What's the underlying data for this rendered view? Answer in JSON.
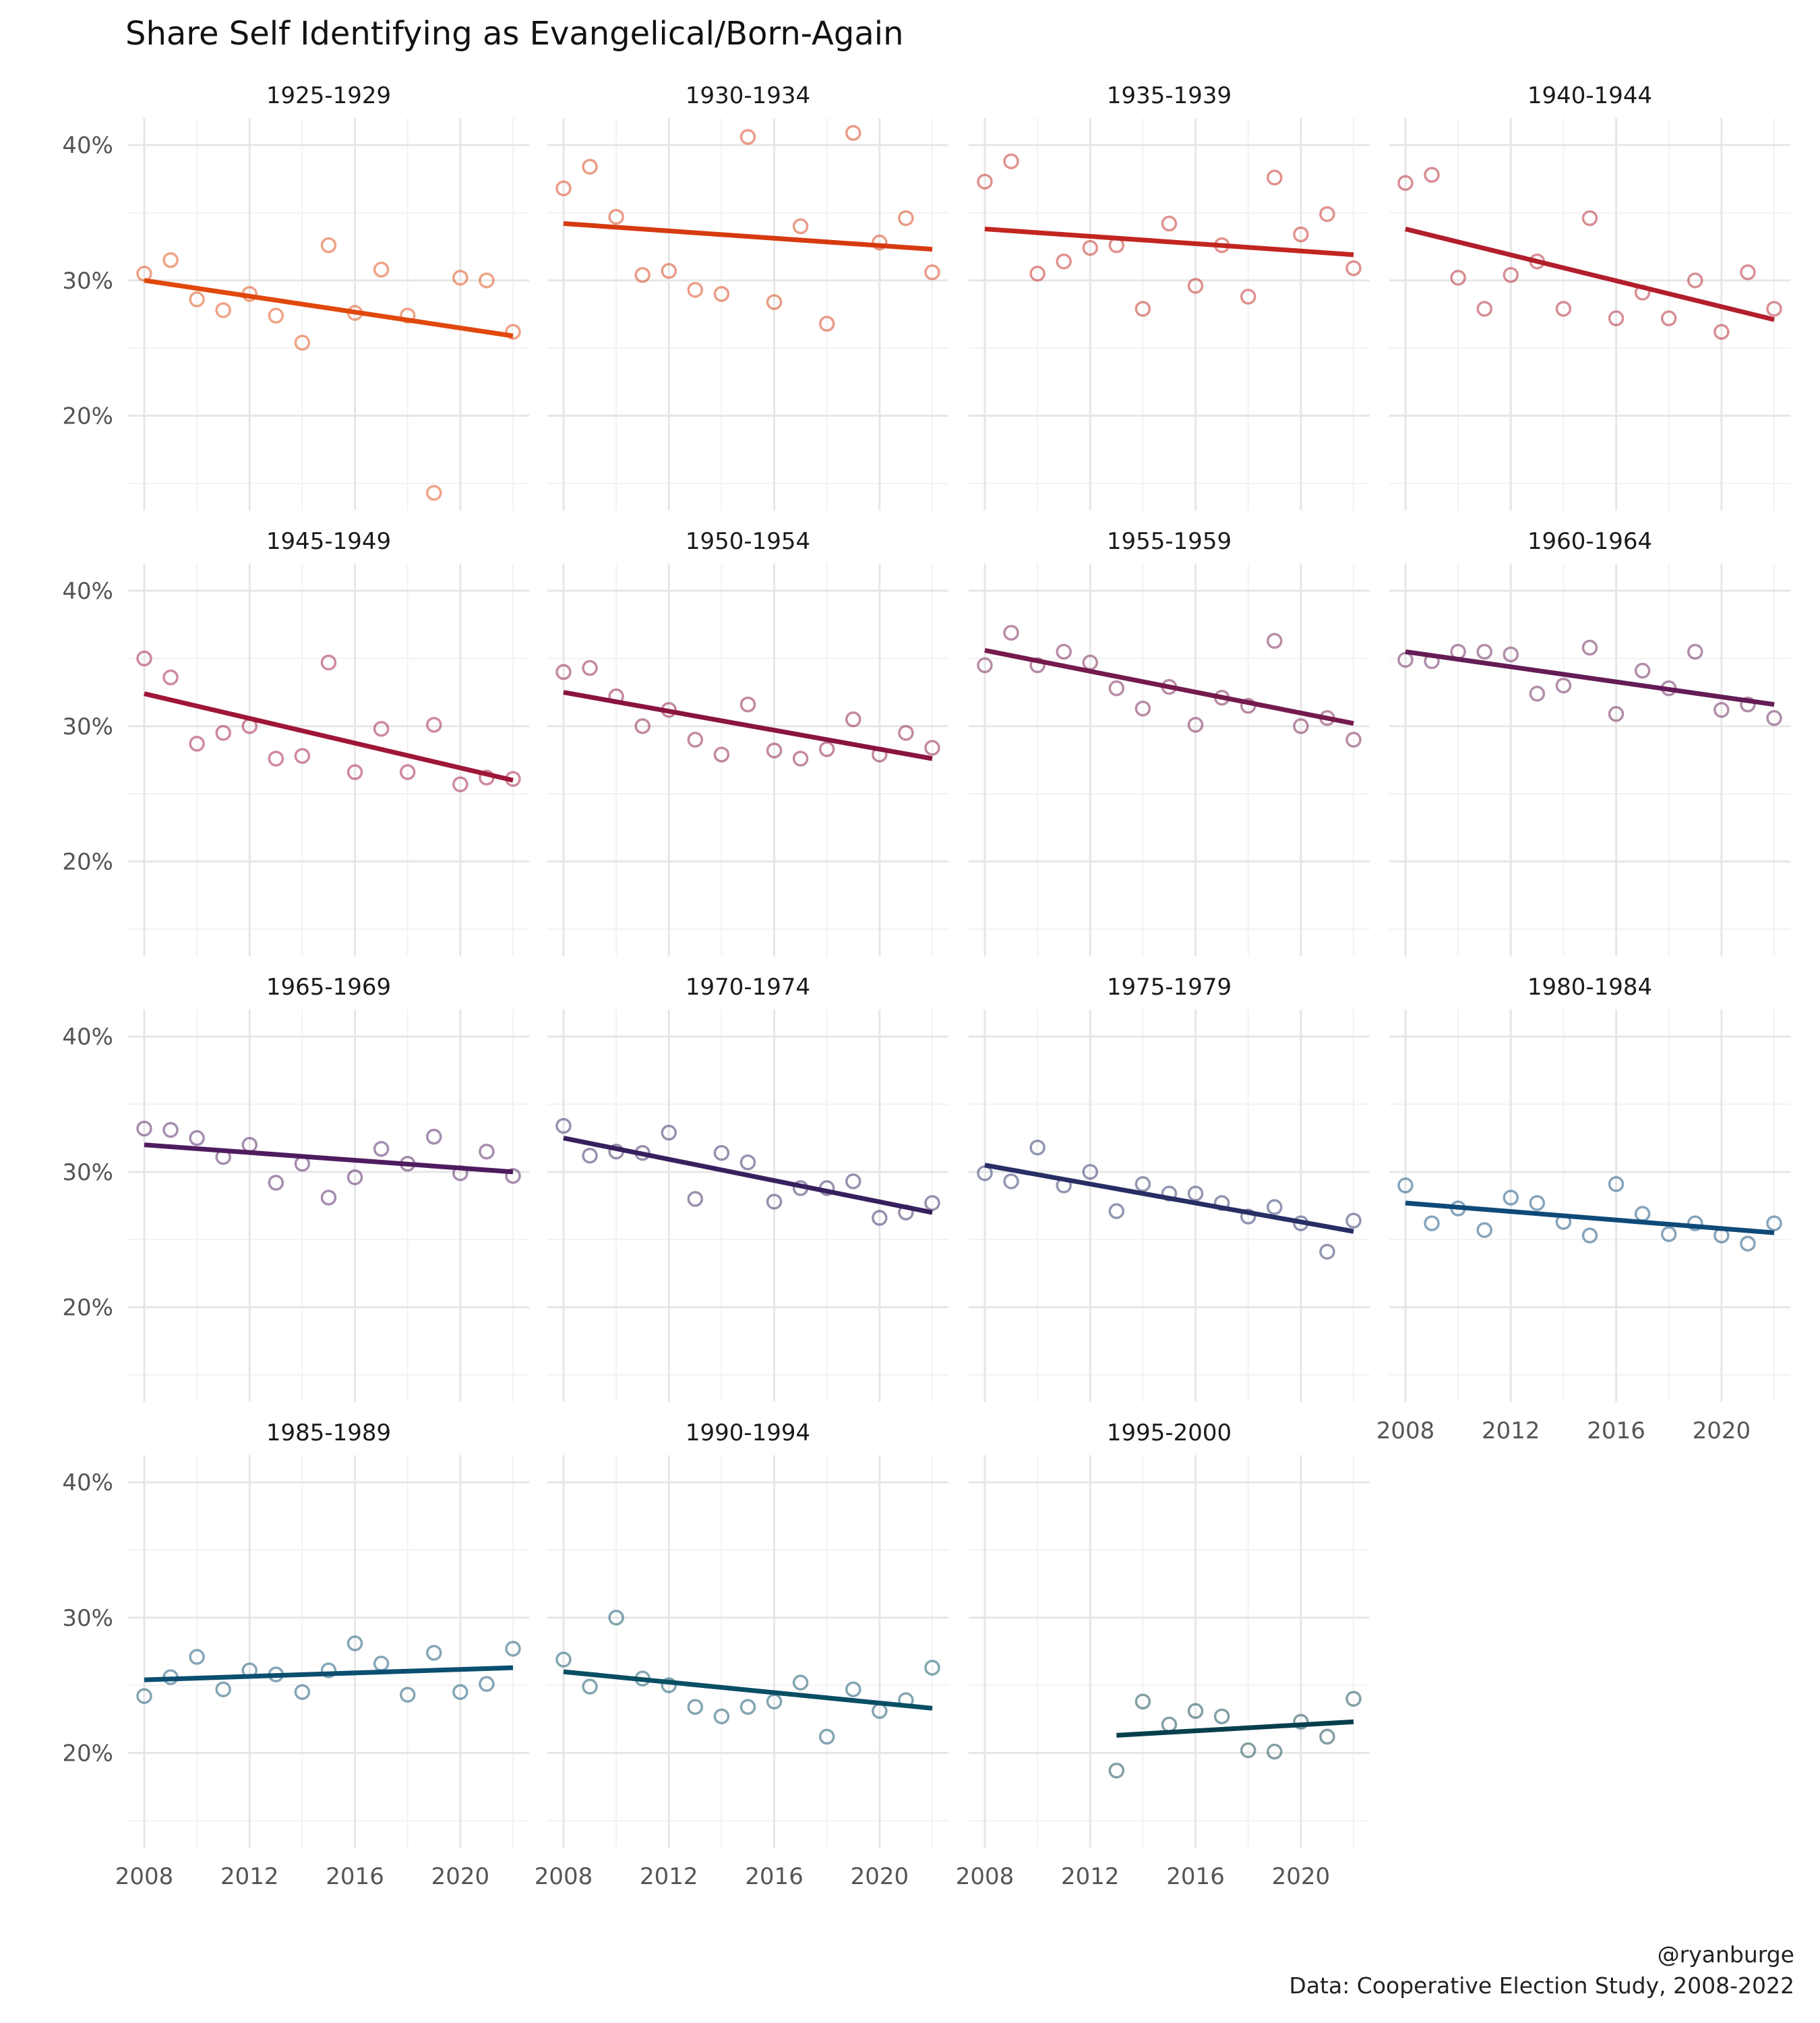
{
  "title": "Share Self Identifying as Evangelical/Born-Again",
  "caption_lines": [
    "@ryanburge",
    "Data: Cooperative Election Study, 2008-2022"
  ],
  "chart_data": {
    "type": "scatter",
    "facet_layout": "4 columns x 4 rows",
    "x_range": [
      2008,
      2022
    ],
    "y_range": [
      0.13,
      0.42
    ],
    "x_ticks": [
      2008,
      2012,
      2016,
      2020
    ],
    "x_tick_labels": [
      "2008",
      "2012",
      "2016",
      "2020"
    ],
    "y_ticks": [
      0.2,
      0.3,
      0.4
    ],
    "y_tick_labels": [
      "20%",
      "30%",
      "40%"
    ],
    "grid": true,
    "legend": "none",
    "panels": [
      {
        "label": "1925-1929",
        "color": "#E0480E",
        "x": [
          2008,
          2009,
          2010,
          2011,
          2012,
          2013,
          2014,
          2015,
          2016,
          2017,
          2018,
          2019,
          2020,
          2021,
          2022
        ],
        "y": [
          0.305,
          0.315,
          0.286,
          0.278,
          0.29,
          0.274,
          0.254,
          0.326,
          0.276,
          0.308,
          0.274,
          0.143,
          0.302,
          0.3,
          0.262
        ],
        "fit": [
          [
            2008,
            0.3
          ],
          [
            2022,
            0.259
          ]
        ]
      },
      {
        "label": "1930-1934",
        "color": "#D63A10",
        "x": [
          2008,
          2009,
          2010,
          2011,
          2012,
          2013,
          2014,
          2015,
          2016,
          2017,
          2018,
          2019,
          2020,
          2021,
          2022
        ],
        "y": [
          0.368,
          0.384,
          0.347,
          0.304,
          0.307,
          0.293,
          0.29,
          0.406,
          0.284,
          0.34,
          0.268,
          0.409,
          0.328,
          0.346,
          0.306
        ],
        "fit": [
          [
            2008,
            0.342
          ],
          [
            2022,
            0.323
          ]
        ]
      },
      {
        "label": "1935-1939",
        "color": "#C22520",
        "x": [
          2008,
          2009,
          2010,
          2011,
          2012,
          2013,
          2014,
          2015,
          2016,
          2017,
          2018,
          2019,
          2020,
          2021,
          2022
        ],
        "y": [
          0.373,
          0.388,
          0.305,
          0.314,
          0.324,
          0.326,
          0.279,
          0.342,
          0.296,
          0.326,
          0.288,
          0.376,
          0.334,
          0.349,
          0.309
        ],
        "fit": [
          [
            2008,
            0.338
          ],
          [
            2022,
            0.319
          ]
        ]
      },
      {
        "label": "1940-1944",
        "color": "#B21E2C",
        "x": [
          2008,
          2009,
          2010,
          2011,
          2012,
          2013,
          2014,
          2015,
          2016,
          2017,
          2018,
          2019,
          2020,
          2021,
          2022
        ],
        "y": [
          0.372,
          0.378,
          0.302,
          0.279,
          0.304,
          0.314,
          0.279,
          0.346,
          0.272,
          0.291,
          0.272,
          0.3,
          0.262,
          0.306,
          0.279
        ],
        "fit": [
          [
            2008,
            0.338
          ],
          [
            2022,
            0.271
          ]
        ]
      },
      {
        "label": "1945-1949",
        "color": "#9E1638",
        "x": [
          2008,
          2009,
          2010,
          2011,
          2012,
          2013,
          2014,
          2015,
          2016,
          2017,
          2018,
          2019,
          2020,
          2021,
          2022
        ],
        "y": [
          0.35,
          0.336,
          0.287,
          0.295,
          0.3,
          0.276,
          0.278,
          0.347,
          0.266,
          0.298,
          0.266,
          0.301,
          0.257,
          0.262,
          0.261
        ],
        "fit": [
          [
            2008,
            0.324
          ],
          [
            2022,
            0.26
          ]
        ]
      },
      {
        "label": "1950-1954",
        "color": "#8A1440",
        "x": [
          2008,
          2009,
          2010,
          2011,
          2012,
          2013,
          2014,
          2015,
          2016,
          2017,
          2018,
          2019,
          2020,
          2021,
          2022
        ],
        "y": [
          0.34,
          0.343,
          0.322,
          0.3,
          0.312,
          0.29,
          0.279,
          0.316,
          0.282,
          0.276,
          0.283,
          0.305,
          0.279,
          0.295,
          0.284
        ],
        "fit": [
          [
            2008,
            0.325
          ],
          [
            2022,
            0.276
          ]
        ]
      },
      {
        "label": "1955-1959",
        "color": "#741A4C",
        "x": [
          2008,
          2009,
          2010,
          2011,
          2012,
          2013,
          2014,
          2015,
          2016,
          2017,
          2018,
          2019,
          2020,
          2021,
          2022
        ],
        "y": [
          0.345,
          0.369,
          0.345,
          0.355,
          0.347,
          0.328,
          0.313,
          0.329,
          0.301,
          0.321,
          0.315,
          0.363,
          0.3,
          0.306,
          0.29
        ],
        "fit": [
          [
            2008,
            0.356
          ],
          [
            2022,
            0.302
          ]
        ]
      },
      {
        "label": "1960-1964",
        "color": "#641C56",
        "x": [
          2008,
          2009,
          2010,
          2011,
          2012,
          2013,
          2014,
          2015,
          2016,
          2017,
          2018,
          2019,
          2020,
          2021,
          2022
        ],
        "y": [
          0.349,
          0.348,
          0.355,
          0.355,
          0.353,
          0.324,
          0.33,
          0.358,
          0.309,
          0.341,
          0.328,
          0.355,
          0.312,
          0.316,
          0.306
        ],
        "fit": [
          [
            2008,
            0.355
          ],
          [
            2022,
            0.316
          ]
        ]
      },
      {
        "label": "1965-1969",
        "color": "#4E1C5E",
        "x": [
          2008,
          2009,
          2010,
          2011,
          2012,
          2013,
          2014,
          2015,
          2016,
          2017,
          2018,
          2019,
          2020,
          2021,
          2022
        ],
        "y": [
          0.332,
          0.331,
          0.325,
          0.311,
          0.32,
          0.292,
          0.306,
          0.281,
          0.296,
          0.317,
          0.306,
          0.326,
          0.299,
          0.315,
          0.297
        ],
        "fit": [
          [
            2008,
            0.32
          ],
          [
            2022,
            0.3
          ]
        ]
      },
      {
        "label": "1970-1974",
        "color": "#36205E",
        "x": [
          2008,
          2009,
          2010,
          2011,
          2012,
          2013,
          2014,
          2015,
          2016,
          2017,
          2018,
          2019,
          2020,
          2021,
          2022
        ],
        "y": [
          0.334,
          0.312,
          0.315,
          0.314,
          0.329,
          0.28,
          0.314,
          0.307,
          0.278,
          0.288,
          0.288,
          0.293,
          0.266,
          0.27,
          0.277
        ],
        "fit": [
          [
            2008,
            0.325
          ],
          [
            2022,
            0.27
          ]
        ]
      },
      {
        "label": "1975-1979",
        "color": "#262E64",
        "x": [
          2008,
          2009,
          2010,
          2011,
          2012,
          2013,
          2014,
          2015,
          2016,
          2017,
          2018,
          2019,
          2020,
          2021,
          2022
        ],
        "y": [
          0.299,
          0.293,
          0.318,
          0.29,
          0.3,
          0.271,
          0.291,
          0.284,
          0.284,
          0.277,
          0.267,
          0.274,
          0.262,
          0.241,
          0.264
        ],
        "fit": [
          [
            2008,
            0.305
          ],
          [
            2022,
            0.256
          ]
        ]
      },
      {
        "label": "1980-1984",
        "color": "#0E4A78",
        "x": [
          2008,
          2009,
          2010,
          2011,
          2012,
          2013,
          2014,
          2015,
          2016,
          2017,
          2018,
          2019,
          2020,
          2021,
          2022
        ],
        "y": [
          0.29,
          0.262,
          0.273,
          0.257,
          0.281,
          0.277,
          0.263,
          0.253,
          0.291,
          0.269,
          0.254,
          0.262,
          0.253,
          0.247,
          0.262
        ],
        "fit": [
          [
            2008,
            0.277
          ],
          [
            2022,
            0.255
          ]
        ]
      },
      {
        "label": "1985-1989",
        "color": "#0B4E70",
        "x": [
          2008,
          2009,
          2010,
          2011,
          2012,
          2013,
          2014,
          2015,
          2016,
          2017,
          2018,
          2019,
          2020,
          2021,
          2022
        ],
        "y": [
          0.242,
          0.256,
          0.271,
          0.247,
          0.261,
          0.258,
          0.245,
          0.261,
          0.281,
          0.266,
          0.243,
          0.274,
          0.245,
          0.251,
          0.277
        ],
        "fit": [
          [
            2008,
            0.254
          ],
          [
            2022,
            0.263
          ]
        ]
      },
      {
        "label": "1990-1994",
        "color": "#0A4E64",
        "x": [
          2008,
          2009,
          2010,
          2011,
          2012,
          2013,
          2014,
          2015,
          2016,
          2017,
          2018,
          2019,
          2020,
          2021,
          2022
        ],
        "y": [
          0.269,
          0.249,
          0.3,
          0.255,
          0.25,
          0.234,
          0.227,
          0.234,
          0.238,
          0.252,
          0.212,
          0.247,
          0.231,
          0.239,
          0.263
        ],
        "fit": [
          [
            2008,
            0.26
          ],
          [
            2022,
            0.233
          ]
        ]
      },
      {
        "label": "1995-2000",
        "color": "#073F4C",
        "x": [
          2013,
          2014,
          2015,
          2016,
          2017,
          2018,
          2019,
          2020,
          2021,
          2022
        ],
        "y": [
          0.187,
          0.238,
          0.221,
          0.231,
          0.227,
          0.202,
          0.201,
          0.223,
          0.212,
          0.24
        ],
        "fit": [
          [
            2013,
            0.213
          ],
          [
            2022,
            0.223
          ]
        ]
      }
    ]
  }
}
